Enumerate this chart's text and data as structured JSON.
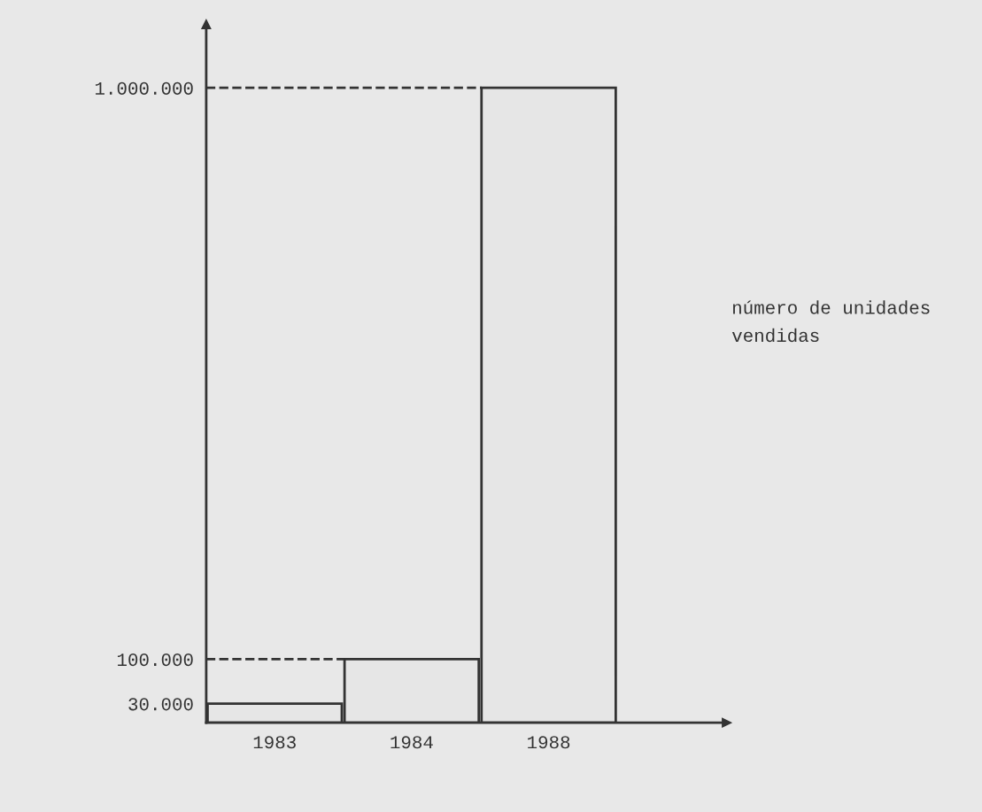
{
  "chart_data": {
    "type": "bar",
    "categories": [
      "1983",
      "1984",
      "1988"
    ],
    "values": [
      30000,
      100000,
      1000000
    ],
    "color": "#e6e6e6",
    "ylim": [
      0,
      1100000
    ],
    "yticks": [
      {
        "value": 30000,
        "label": "30.000"
      },
      {
        "value": 100000,
        "label": "100.000"
      },
      {
        "value": 1000000,
        "label": "1.000.000"
      }
    ],
    "ref_lines": [
      {
        "axis": "y",
        "value": 100000,
        "label": null,
        "line_style": "dashed"
      },
      {
        "axis": "y",
        "value": 1000000,
        "label": null,
        "line_style": "dashed"
      }
    ],
    "annotations": [
      "número de unidades\nvendidas"
    ],
    "grid": false,
    "legend": false
  }
}
